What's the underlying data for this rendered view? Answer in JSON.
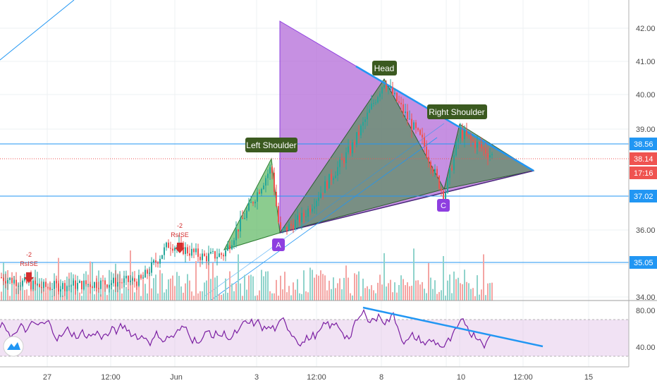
{
  "chart_data": [
    {
      "type": "candlestick",
      "price_axis": {
        "ticks": [
          42.0,
          41.0,
          40.0,
          39.0,
          36.0,
          35.0,
          34.0
        ],
        "range": [
          34.0,
          42.5
        ]
      },
      "time_axis": {
        "ticks": [
          "27",
          "12:00",
          "Jun",
          "12:00",
          "3",
          "12:00",
          "8",
          "12:00",
          "10",
          "12:00",
          "15"
        ]
      },
      "price_tags": [
        {
          "label": "38.56",
          "value": 38.56,
          "color": "#2196f3"
        },
        {
          "label": "38.14",
          "value": 38.14,
          "color": "#ef5350"
        },
        {
          "label": "17:16",
          "color": "#ef5350"
        },
        {
          "label": "37.02",
          "value": 37.02,
          "color": "#2196f3"
        },
        {
          "label": "35.05",
          "value": 35.05,
          "color": "#2196f3"
        }
      ],
      "horizontal_lines": [
        38.56,
        37.02,
        35.05
      ],
      "pattern_labels": {
        "left_shoulder": "Left Shoulder",
        "head": "Head",
        "right_shoulder": "Right Shoulder"
      },
      "point_markers": [
        "A",
        "C"
      ],
      "signals": [
        {
          "count": "-2",
          "name": "RsISE"
        },
        {
          "count": "-2",
          "name": "RsISE"
        }
      ],
      "colors": {
        "up": "#26a69a",
        "down": "#ef5350",
        "triangle": "#b36bd8",
        "shoulder": "#66bb6a",
        "marker": "#8e3fe0"
      }
    },
    {
      "type": "line",
      "name_hint": "oscillator",
      "y_axis": {
        "ticks": [
          80.0,
          40.0
        ],
        "range": [
          15,
          95
        ]
      },
      "band": [
        30,
        70
      ],
      "color": "#7b1fa2",
      "trendline_color": "#2196f3"
    }
  ],
  "logo": {
    "icon": "tradingview-logo-icon"
  }
}
